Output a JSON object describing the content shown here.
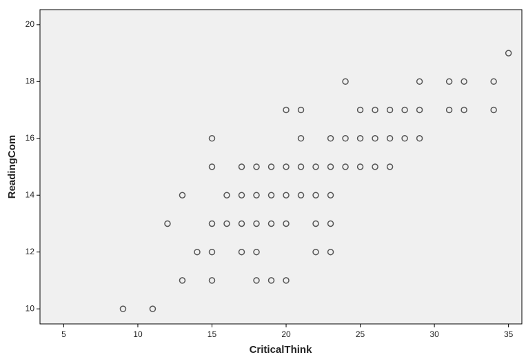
{
  "chart_data": {
    "type": "scatter",
    "x_label": "CriticalThink",
    "y_label": "ReadingCom",
    "x": [
      35,
      24,
      29,
      31,
      32,
      34,
      20,
      21,
      25,
      26,
      27,
      28,
      29,
      31,
      32,
      34,
      15,
      21,
      23,
      24,
      25,
      26,
      27,
      28,
      29,
      15,
      17,
      18,
      19,
      20,
      21,
      22,
      23,
      24,
      25,
      26,
      27,
      13,
      16,
      17,
      18,
      19,
      20,
      21,
      22,
      23,
      12,
      15,
      16,
      17,
      18,
      19,
      20,
      22,
      23,
      14,
      15,
      17,
      18,
      22,
      23,
      13,
      15,
      18,
      19,
      20,
      9,
      11
    ],
    "y": [
      19,
      18,
      18,
      18,
      18,
      18,
      17,
      17,
      17,
      17,
      17,
      17,
      17,
      17,
      17,
      17,
      16,
      16,
      16,
      16,
      16,
      16,
      16,
      16,
      16,
      15,
      15,
      15,
      15,
      15,
      15,
      15,
      15,
      15,
      15,
      15,
      15,
      14,
      14,
      14,
      14,
      14,
      14,
      14,
      14,
      14,
      13,
      13,
      13,
      13,
      13,
      13,
      13,
      13,
      13,
      12,
      12,
      12,
      12,
      12,
      12,
      11,
      11,
      11,
      11,
      11,
      10,
      10
    ],
    "color": "#555555",
    "xlim": [
      3.4,
      35.9
    ],
    "xticks": [
      5,
      10,
      15,
      20,
      25,
      30,
      35
    ],
    "ylim": [
      9.47,
      20.53
    ],
    "yticks": [
      10,
      12,
      14,
      16,
      18,
      20
    ]
  }
}
